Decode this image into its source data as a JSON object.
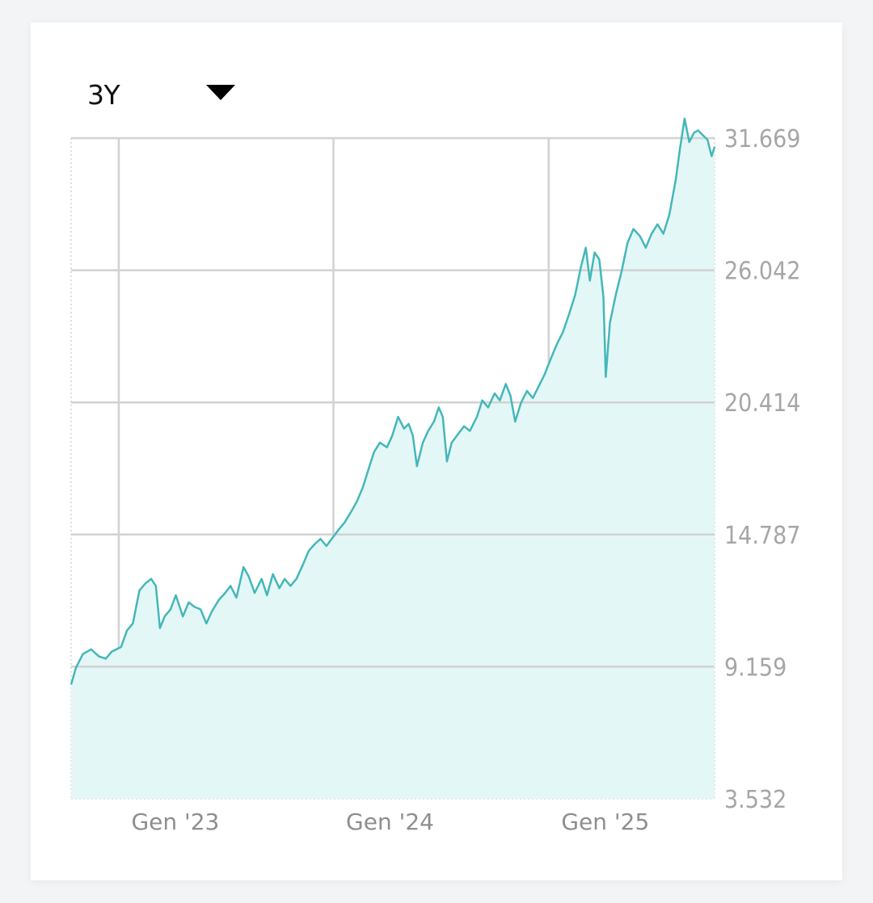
{
  "range_selector": {
    "selected": "3Y",
    "icon": "caret-down-icon"
  },
  "colors": {
    "line": "#45b7b8",
    "area": "#e3f7f6",
    "grid": "#d2d2d2",
    "tick_text": "#a6a6a6"
  },
  "chart_data": {
    "type": "area",
    "title": "",
    "xlabel": "",
    "ylabel": "",
    "grid": true,
    "y_axis_side": "right",
    "y_ticks": [
      3.532,
      9.159,
      14.787,
      20.414,
      26.042,
      31.669
    ],
    "y_tick_labels": [
      "3.532",
      "9.159",
      "14.787",
      "20.414",
      "26.042",
      "31.669"
    ],
    "ylim": [
      3.532,
      31.669
    ],
    "x_ticks": [
      "2023-01-01",
      "2024-01-01",
      "2025-01-01"
    ],
    "x_tick_labels": [
      "Gen '23",
      "Gen '24",
      "Gen '25"
    ],
    "xlim": [
      "2022-10-12",
      "2025-10-10"
    ],
    "series": [
      {
        "values": [
          [
            "2022-10-12",
            8.4
          ],
          [
            "2022-10-20",
            9.1
          ],
          [
            "2022-11-01",
            9.7
          ],
          [
            "2022-11-15",
            9.9
          ],
          [
            "2022-11-28",
            9.6
          ],
          [
            "2022-12-10",
            9.5
          ],
          [
            "2022-12-20",
            9.8
          ],
          [
            "2023-01-05",
            10.0
          ],
          [
            "2023-01-15",
            10.7
          ],
          [
            "2023-01-25",
            11.0
          ],
          [
            "2023-02-05",
            12.4
          ],
          [
            "2023-02-15",
            12.7
          ],
          [
            "2023-02-25",
            12.9
          ],
          [
            "2023-03-05",
            12.6
          ],
          [
            "2023-03-12",
            10.8
          ],
          [
            "2023-03-20",
            11.3
          ],
          [
            "2023-03-30",
            11.6
          ],
          [
            "2023-04-08",
            12.2
          ],
          [
            "2023-04-20",
            11.3
          ],
          [
            "2023-04-30",
            11.9
          ],
          [
            "2023-05-10",
            11.7
          ],
          [
            "2023-05-20",
            11.6
          ],
          [
            "2023-05-30",
            11.0
          ],
          [
            "2023-06-08",
            11.5
          ],
          [
            "2023-06-20",
            12.0
          ],
          [
            "2023-07-01",
            12.3
          ],
          [
            "2023-07-10",
            12.6
          ],
          [
            "2023-07-20",
            12.1
          ],
          [
            "2023-08-01",
            13.4
          ],
          [
            "2023-08-10",
            13.0
          ],
          [
            "2023-08-20",
            12.3
          ],
          [
            "2023-09-01",
            12.9
          ],
          [
            "2023-09-10",
            12.2
          ],
          [
            "2023-09-20",
            13.1
          ],
          [
            "2023-10-01",
            12.5
          ],
          [
            "2023-10-10",
            12.9
          ],
          [
            "2023-10-20",
            12.6
          ],
          [
            "2023-10-30",
            12.9
          ],
          [
            "2023-11-10",
            13.5
          ],
          [
            "2023-11-20",
            14.1
          ],
          [
            "2023-12-01",
            14.4
          ],
          [
            "2023-12-10",
            14.6
          ],
          [
            "2023-12-20",
            14.3
          ],
          [
            "2024-01-01",
            14.7
          ],
          [
            "2024-01-10",
            15.0
          ],
          [
            "2024-01-20",
            15.3
          ],
          [
            "2024-02-01",
            15.8
          ],
          [
            "2024-02-10",
            16.2
          ],
          [
            "2024-02-20",
            16.8
          ],
          [
            "2024-03-01",
            17.6
          ],
          [
            "2024-03-10",
            18.3
          ],
          [
            "2024-03-20",
            18.7
          ],
          [
            "2024-04-01",
            18.5
          ],
          [
            "2024-04-10",
            19.0
          ],
          [
            "2024-04-20",
            19.8
          ],
          [
            "2024-04-30",
            19.3
          ],
          [
            "2024-05-08",
            19.5
          ],
          [
            "2024-05-15",
            19.0
          ],
          [
            "2024-05-22",
            17.7
          ],
          [
            "2024-06-01",
            18.7
          ],
          [
            "2024-06-10",
            19.2
          ],
          [
            "2024-06-20",
            19.6
          ],
          [
            "2024-06-28",
            20.2
          ],
          [
            "2024-07-05",
            19.8
          ],
          [
            "2024-07-12",
            17.9
          ],
          [
            "2024-07-20",
            18.7
          ],
          [
            "2024-08-01",
            19.1
          ],
          [
            "2024-08-10",
            19.4
          ],
          [
            "2024-08-20",
            19.2
          ],
          [
            "2024-09-01",
            19.8
          ],
          [
            "2024-09-10",
            20.5
          ],
          [
            "2024-09-20",
            20.2
          ],
          [
            "2024-10-01",
            20.8
          ],
          [
            "2024-10-10",
            20.5
          ],
          [
            "2024-10-20",
            21.2
          ],
          [
            "2024-10-28",
            20.7
          ],
          [
            "2024-11-05",
            19.6
          ],
          [
            "2024-11-15",
            20.4
          ],
          [
            "2024-11-25",
            20.9
          ],
          [
            "2024-12-05",
            20.6
          ],
          [
            "2024-12-15",
            21.1
          ],
          [
            "2024-12-25",
            21.6
          ],
          [
            "2025-01-05",
            22.3
          ],
          [
            "2025-01-15",
            22.9
          ],
          [
            "2025-01-25",
            23.4
          ],
          [
            "2025-02-05",
            24.2
          ],
          [
            "2025-02-15",
            25.0
          ],
          [
            "2025-02-25",
            26.2
          ],
          [
            "2025-03-05",
            27.0
          ],
          [
            "2025-03-12",
            25.6
          ],
          [
            "2025-03-20",
            26.8
          ],
          [
            "2025-03-28",
            26.5
          ],
          [
            "2025-04-04",
            24.9
          ],
          [
            "2025-04-08",
            21.5
          ],
          [
            "2025-04-15",
            23.8
          ],
          [
            "2025-04-25",
            25.0
          ],
          [
            "2025-05-05",
            26.0
          ],
          [
            "2025-05-15",
            27.2
          ],
          [
            "2025-05-25",
            27.8
          ],
          [
            "2025-06-05",
            27.5
          ],
          [
            "2025-06-15",
            27.0
          ],
          [
            "2025-06-25",
            27.6
          ],
          [
            "2025-07-05",
            28.0
          ],
          [
            "2025-07-15",
            27.6
          ],
          [
            "2025-07-25",
            28.4
          ],
          [
            "2025-08-05",
            29.9
          ],
          [
            "2025-08-12",
            31.2
          ],
          [
            "2025-08-20",
            32.5
          ],
          [
            "2025-08-28",
            31.5
          ],
          [
            "2025-09-05",
            31.9
          ],
          [
            "2025-09-12",
            32.0
          ],
          [
            "2025-09-20",
            31.8
          ],
          [
            "2025-09-28",
            31.6
          ],
          [
            "2025-10-05",
            30.9
          ],
          [
            "2025-10-10",
            31.3
          ]
        ]
      }
    ]
  }
}
